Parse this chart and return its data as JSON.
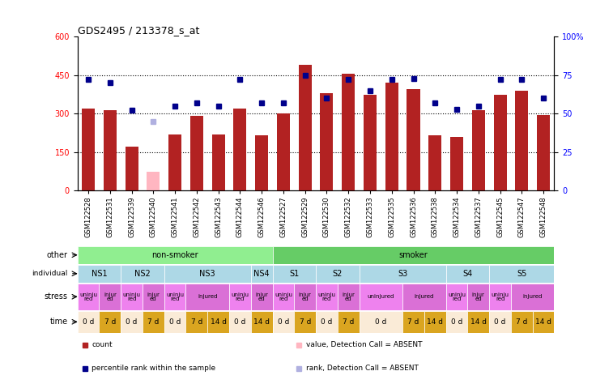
{
  "title": "GDS2495 / 213378_s_at",
  "samples": [
    "GSM122528",
    "GSM122531",
    "GSM122539",
    "GSM122540",
    "GSM122541",
    "GSM122542",
    "GSM122543",
    "GSM122544",
    "GSM122546",
    "GSM122527",
    "GSM122529",
    "GSM122530",
    "GSM122532",
    "GSM122533",
    "GSM122535",
    "GSM122536",
    "GSM122538",
    "GSM122534",
    "GSM122537",
    "GSM122545",
    "GSM122547",
    "GSM122548"
  ],
  "bar_values": [
    320,
    315,
    170,
    75,
    220,
    290,
    220,
    320,
    215,
    300,
    490,
    380,
    455,
    375,
    420,
    395,
    215,
    210,
    315,
    375,
    390,
    295
  ],
  "bar_absent": [
    false,
    false,
    false,
    true,
    false,
    false,
    false,
    false,
    false,
    false,
    false,
    false,
    false,
    false,
    false,
    false,
    false,
    false,
    false,
    false,
    false,
    false
  ],
  "rank_values": [
    72,
    70,
    52,
    45,
    55,
    57,
    55,
    72,
    57,
    57,
    75,
    60,
    72,
    65,
    72,
    73,
    57,
    53,
    55,
    72,
    72,
    60
  ],
  "rank_absent": [
    false,
    false,
    false,
    true,
    false,
    false,
    false,
    false,
    false,
    false,
    false,
    false,
    false,
    false,
    false,
    false,
    false,
    false,
    false,
    false,
    false,
    false
  ],
  "bar_color": "#b22222",
  "bar_absent_color": "#ffb6c1",
  "rank_color": "#00008b",
  "rank_absent_color": "#b0b0e0",
  "ylim_left": [
    0,
    600
  ],
  "ylim_right": [
    0,
    100
  ],
  "yticks_left": [
    0,
    150,
    300,
    450,
    600
  ],
  "ytick_labels_left": [
    "0",
    "150",
    "300",
    "450",
    "600"
  ],
  "yticks_right": [
    0,
    25,
    50,
    75,
    100
  ],
  "ytick_labels_right": [
    "0",
    "25",
    "50",
    "75",
    "100%"
  ],
  "hlines": [
    150,
    300,
    450
  ],
  "other_row": {
    "label": "other",
    "groups": [
      {
        "text": "non-smoker",
        "start": 0,
        "end": 9,
        "color": "#90ee90"
      },
      {
        "text": "smoker",
        "start": 9,
        "end": 22,
        "color": "#66cc66"
      }
    ]
  },
  "individual_row": {
    "label": "individual",
    "groups": [
      {
        "text": "NS1",
        "start": 0,
        "end": 2,
        "color": "#add8e6"
      },
      {
        "text": "NS2",
        "start": 2,
        "end": 4,
        "color": "#add8e6"
      },
      {
        "text": "NS3",
        "start": 4,
        "end": 8,
        "color": "#add8e6"
      },
      {
        "text": "NS4",
        "start": 8,
        "end": 9,
        "color": "#add8e6"
      },
      {
        "text": "S1",
        "start": 9,
        "end": 11,
        "color": "#add8e6"
      },
      {
        "text": "S2",
        "start": 11,
        "end": 13,
        "color": "#add8e6"
      },
      {
        "text": "S3",
        "start": 13,
        "end": 17,
        "color": "#add8e6"
      },
      {
        "text": "S4",
        "start": 17,
        "end": 19,
        "color": "#add8e6"
      },
      {
        "text": "S5",
        "start": 19,
        "end": 22,
        "color": "#add8e6"
      }
    ]
  },
  "stress_row": {
    "label": "stress",
    "cells": [
      {
        "text": "uninju\nred",
        "start": 0,
        "end": 1,
        "color": "#ee82ee"
      },
      {
        "text": "injur\ned",
        "start": 1,
        "end": 2,
        "color": "#da70d6"
      },
      {
        "text": "uninju\nred",
        "start": 2,
        "end": 3,
        "color": "#ee82ee"
      },
      {
        "text": "injur\ned",
        "start": 3,
        "end": 4,
        "color": "#da70d6"
      },
      {
        "text": "uninju\nred",
        "start": 4,
        "end": 5,
        "color": "#ee82ee"
      },
      {
        "text": "injured",
        "start": 5,
        "end": 7,
        "color": "#da70d6"
      },
      {
        "text": "uninju\nred",
        "start": 7,
        "end": 8,
        "color": "#ee82ee"
      },
      {
        "text": "injur\ned",
        "start": 8,
        "end": 9,
        "color": "#da70d6"
      },
      {
        "text": "uninju\nred",
        "start": 9,
        "end": 10,
        "color": "#ee82ee"
      },
      {
        "text": "injur\ned",
        "start": 10,
        "end": 11,
        "color": "#da70d6"
      },
      {
        "text": "uninju\nred",
        "start": 11,
        "end": 12,
        "color": "#ee82ee"
      },
      {
        "text": "injur\ned",
        "start": 12,
        "end": 13,
        "color": "#da70d6"
      },
      {
        "text": "uninjured",
        "start": 13,
        "end": 15,
        "color": "#ee82ee"
      },
      {
        "text": "injured",
        "start": 15,
        "end": 17,
        "color": "#da70d6"
      },
      {
        "text": "uninju\nred",
        "start": 17,
        "end": 18,
        "color": "#ee82ee"
      },
      {
        "text": "injur\ned",
        "start": 18,
        "end": 19,
        "color": "#da70d6"
      },
      {
        "text": "uninju\nred",
        "start": 19,
        "end": 20,
        "color": "#ee82ee"
      },
      {
        "text": "injured",
        "start": 20,
        "end": 22,
        "color": "#da70d6"
      }
    ]
  },
  "time_row": {
    "label": "time",
    "cells": [
      {
        "text": "0 d",
        "start": 0,
        "end": 1,
        "color": "#faebd7"
      },
      {
        "text": "7 d",
        "start": 1,
        "end": 2,
        "color": "#daa520"
      },
      {
        "text": "0 d",
        "start": 2,
        "end": 3,
        "color": "#faebd7"
      },
      {
        "text": "7 d",
        "start": 3,
        "end": 4,
        "color": "#daa520"
      },
      {
        "text": "0 d",
        "start": 4,
        "end": 5,
        "color": "#faebd7"
      },
      {
        "text": "7 d",
        "start": 5,
        "end": 6,
        "color": "#daa520"
      },
      {
        "text": "14 d",
        "start": 6,
        "end": 7,
        "color": "#daa520"
      },
      {
        "text": "0 d",
        "start": 7,
        "end": 8,
        "color": "#faebd7"
      },
      {
        "text": "14 d",
        "start": 8,
        "end": 9,
        "color": "#daa520"
      },
      {
        "text": "0 d",
        "start": 9,
        "end": 10,
        "color": "#faebd7"
      },
      {
        "text": "7 d",
        "start": 10,
        "end": 11,
        "color": "#daa520"
      },
      {
        "text": "0 d",
        "start": 11,
        "end": 12,
        "color": "#faebd7"
      },
      {
        "text": "7 d",
        "start": 12,
        "end": 13,
        "color": "#daa520"
      },
      {
        "text": "0 d",
        "start": 13,
        "end": 15,
        "color": "#faebd7"
      },
      {
        "text": "7 d",
        "start": 15,
        "end": 16,
        "color": "#daa520"
      },
      {
        "text": "14 d",
        "start": 16,
        "end": 17,
        "color": "#daa520"
      },
      {
        "text": "0 d",
        "start": 17,
        "end": 18,
        "color": "#faebd7"
      },
      {
        "text": "14 d",
        "start": 18,
        "end": 19,
        "color": "#daa520"
      },
      {
        "text": "0 d",
        "start": 19,
        "end": 20,
        "color": "#faebd7"
      },
      {
        "text": "7 d",
        "start": 20,
        "end": 21,
        "color": "#daa520"
      },
      {
        "text": "14 d",
        "start": 21,
        "end": 22,
        "color": "#daa520"
      }
    ]
  },
  "legend_items": [
    {
      "color": "#b22222",
      "label": "count",
      "marker": "s"
    },
    {
      "color": "#00008b",
      "label": "percentile rank within the sample",
      "marker": "s"
    },
    {
      "color": "#ffb6c1",
      "label": "value, Detection Call = ABSENT",
      "marker": "s"
    },
    {
      "color": "#b0b0e0",
      "label": "rank, Detection Call = ABSENT",
      "marker": "s"
    }
  ],
  "fig_width": 7.36,
  "fig_height": 4.74,
  "dpi": 100
}
